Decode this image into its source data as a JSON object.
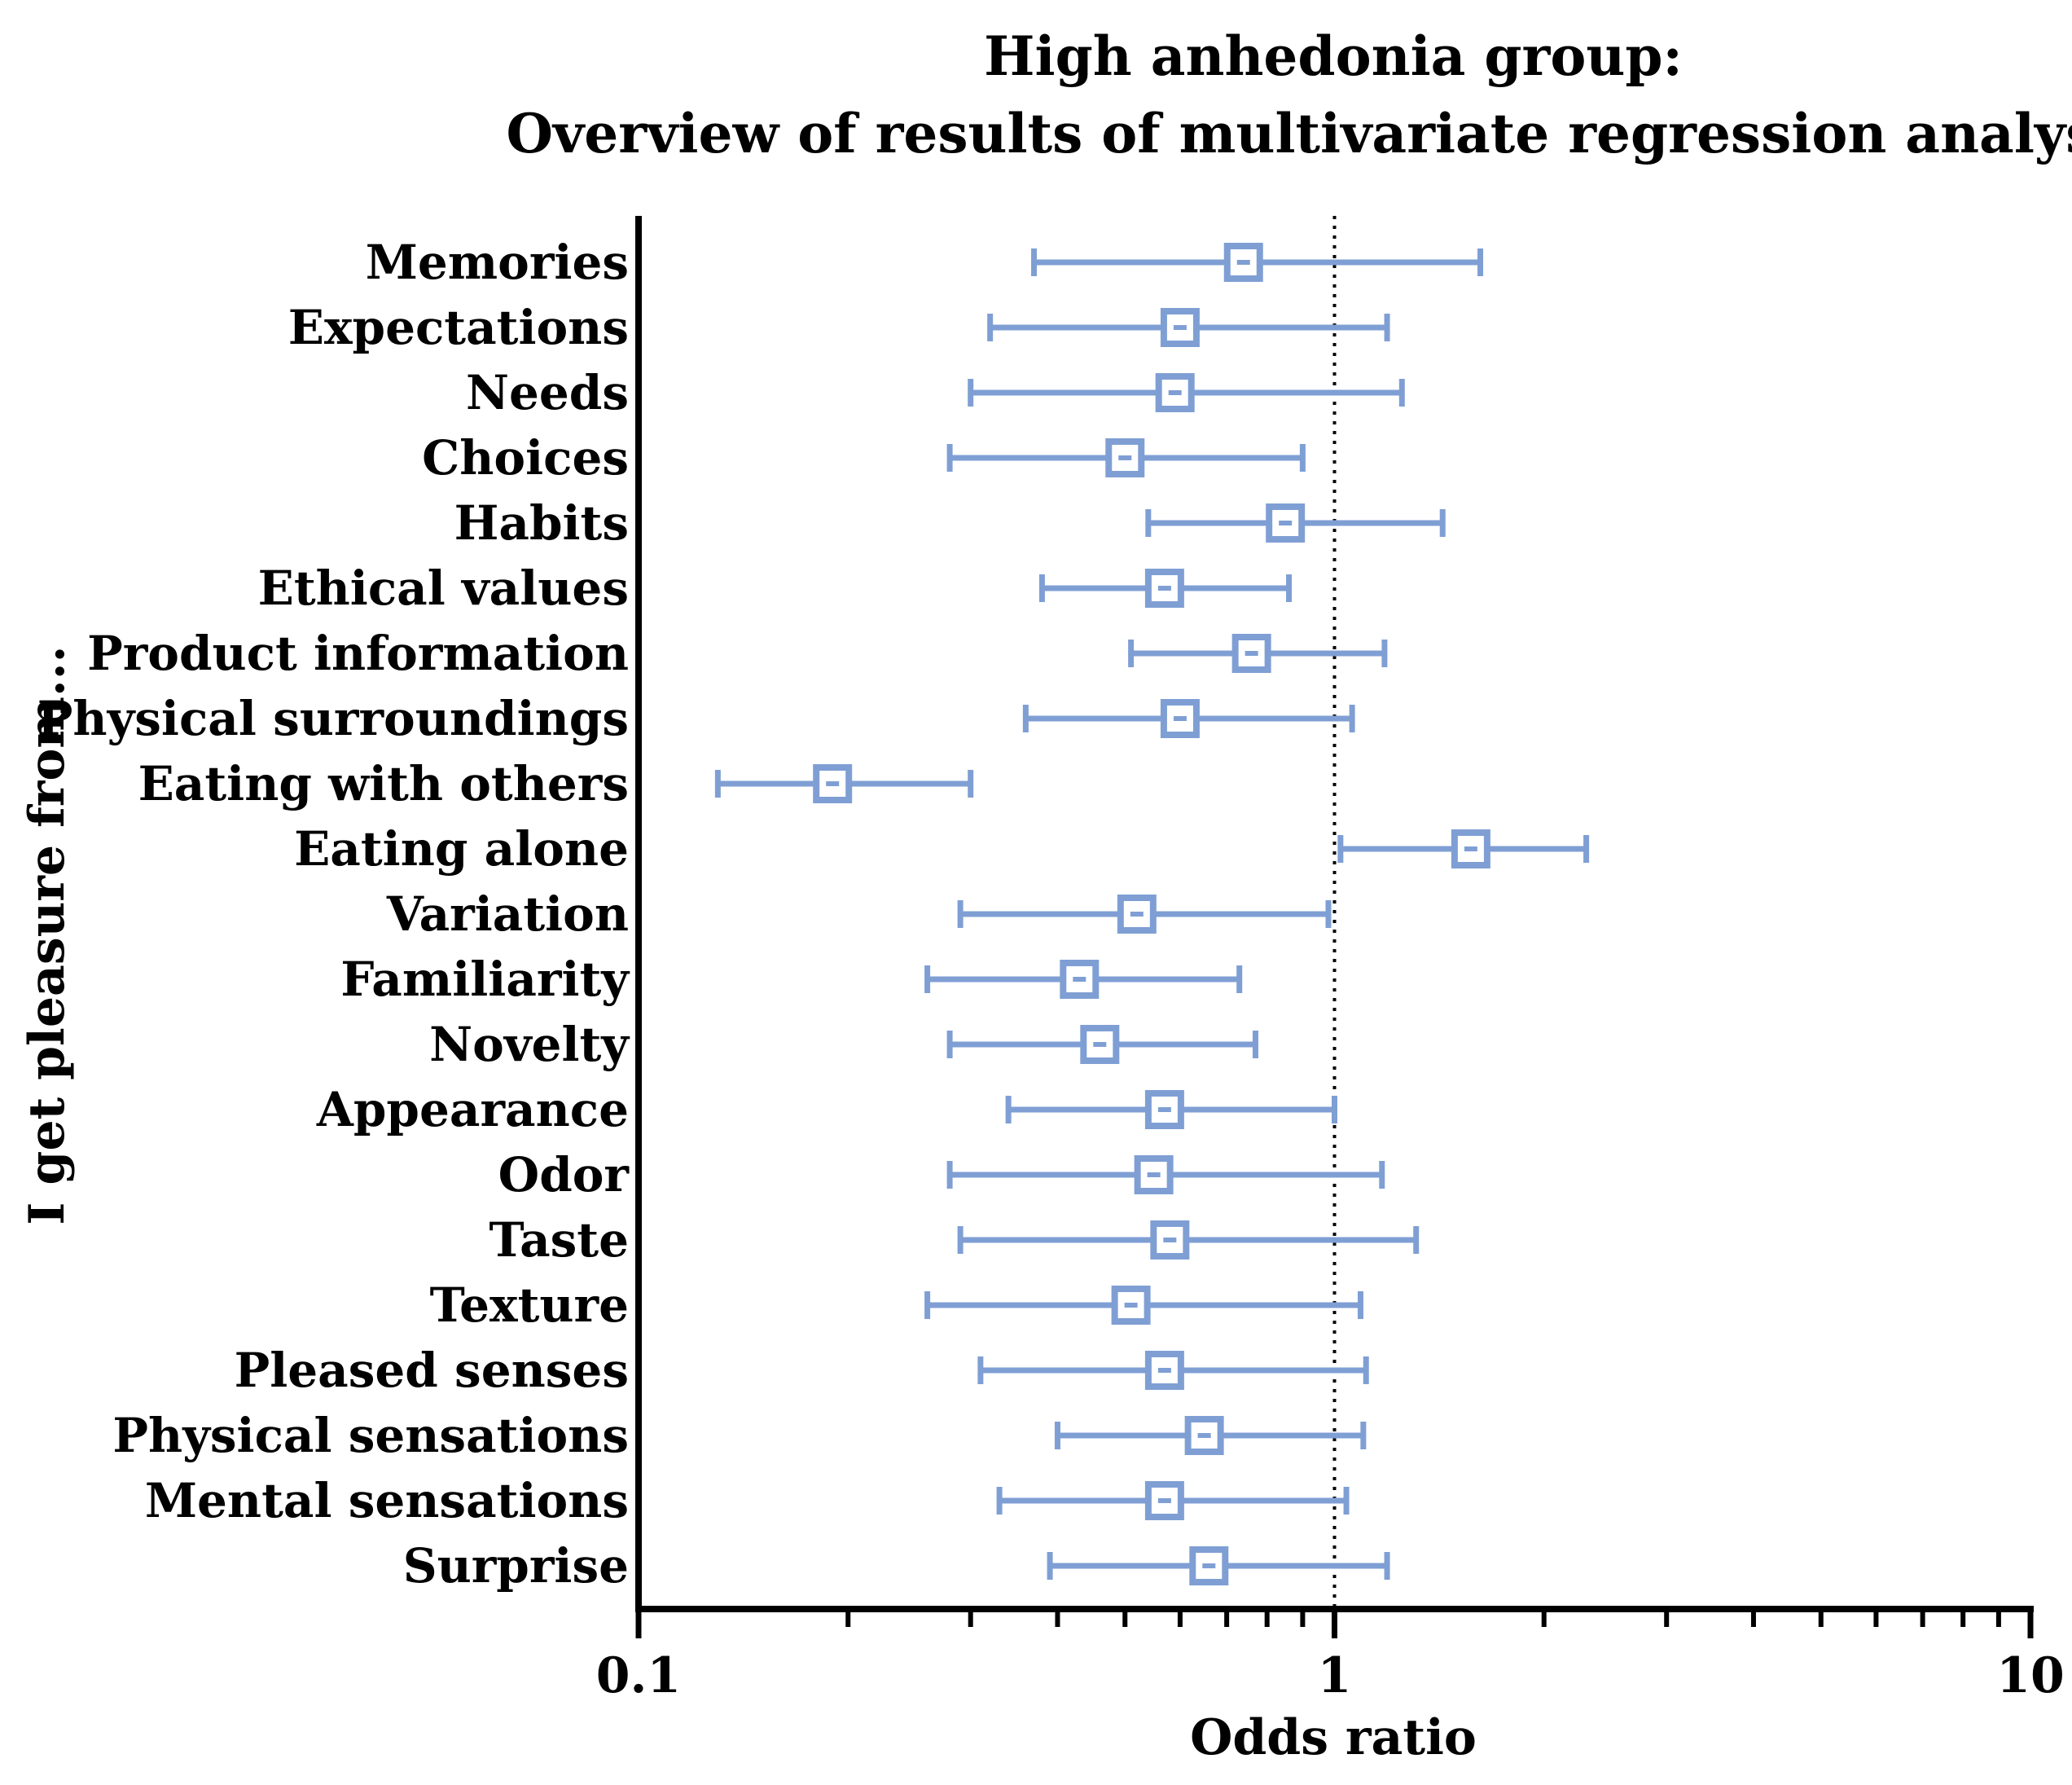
{
  "chart_data": {
    "type": "forest",
    "title": "High anhedonia group:",
    "subtitle": "Overview of results of multivariate regression analyses",
    "xlabel": "Odds ratio",
    "ylabel": "I get pleasure from...",
    "xscale": "log",
    "xlim": [
      0.1,
      10
    ],
    "xticks": [
      {
        "value": 0.1,
        "label": "0.1"
      },
      {
        "value": 1,
        "label": "1"
      },
      {
        "value": 10,
        "label": "10"
      }
    ],
    "reference_line": 1,
    "color": "#7f9fd4",
    "categories": [
      "Memories",
      "Expectations",
      "Needs",
      "Choices",
      "Habits",
      "Ethical values",
      "Product information",
      "Physical surroundings",
      "Eating with others",
      "Eating alone",
      "Variation",
      "Familiarity",
      "Novelty",
      "Appearance",
      "Odor",
      "Taste",
      "Texture",
      "Pleased senses",
      "Physical sensations",
      "Mental sensations",
      "Surprise"
    ],
    "or": [
      0.74,
      0.6,
      0.59,
      0.5,
      0.85,
      0.57,
      0.76,
      0.6,
      0.19,
      1.57,
      0.52,
      0.43,
      0.46,
      0.57,
      0.55,
      0.58,
      0.51,
      0.57,
      0.65,
      0.57,
      0.66
    ],
    "lower": [
      0.37,
      0.32,
      0.3,
      0.28,
      0.54,
      0.38,
      0.51,
      0.36,
      0.13,
      1.02,
      0.29,
      0.26,
      0.28,
      0.34,
      0.28,
      0.29,
      0.26,
      0.31,
      0.4,
      0.33,
      0.39
    ],
    "upper": [
      1.62,
      1.19,
      1.25,
      0.9,
      1.43,
      0.86,
      1.18,
      1.06,
      0.3,
      2.3,
      0.98,
      0.73,
      0.77,
      1.0,
      1.17,
      1.31,
      1.09,
      1.11,
      1.1,
      1.04,
      1.19
    ]
  }
}
